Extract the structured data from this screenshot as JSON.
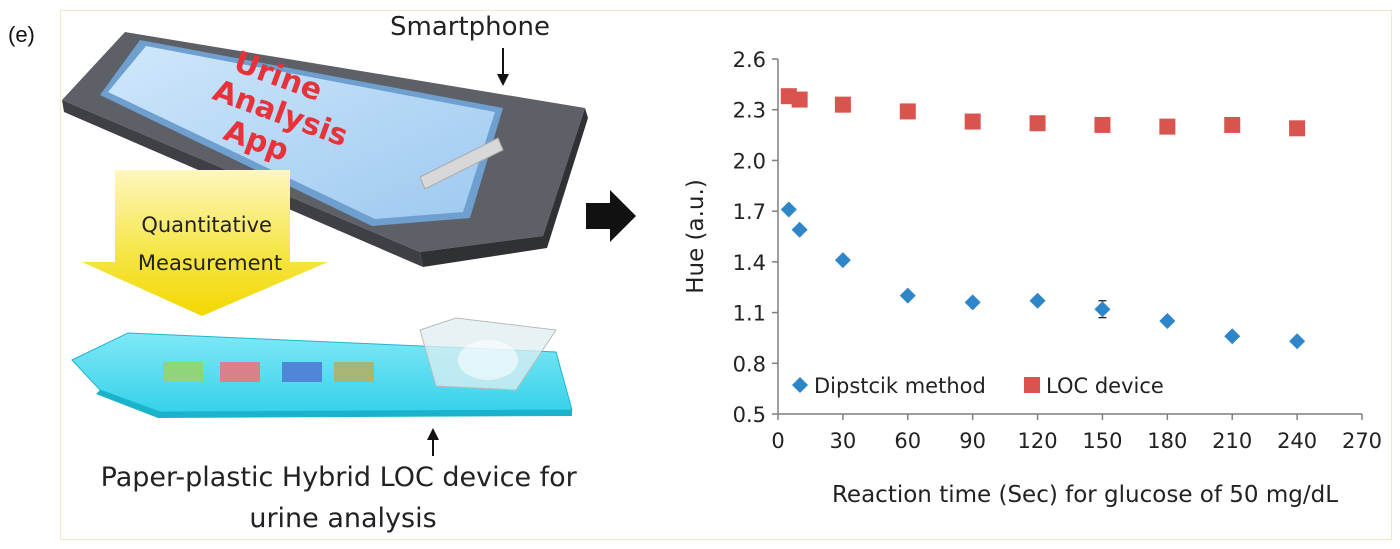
{
  "panel_label": "(e)",
  "illustration": {
    "phone_label": "Smartphone",
    "app_text_lines": [
      "Urine",
      "Analysis",
      "App"
    ],
    "arrow_text_lines": [
      "Quantitative",
      "Measurement"
    ],
    "device_caption_lines": [
      "Paper-plastic Hybrid LOC device for",
      "urine analysis"
    ],
    "strip_pad_colors": [
      "#8fd67a",
      "#d9808a",
      "#4f86d8",
      "#a7b577"
    ],
    "icons": [
      "smartphone-illustration",
      "down-arrow-icon",
      "loc-device-illustration",
      "right-arrow-icon"
    ]
  },
  "chart_data": {
    "type": "scatter",
    "xlabel": "Reaction time (Sec) for glucose of 50 mg/dL",
    "ylabel": "Hue (a.u.)",
    "xlim": [
      0,
      270
    ],
    "ylim": [
      0.5,
      2.6
    ],
    "x_ticks": [
      "0",
      "30",
      "60",
      "90",
      "120",
      "150",
      "180",
      "210",
      "240",
      "270"
    ],
    "y_ticks": [
      "2.6",
      "2.3",
      "2.0",
      "1.7",
      "1.4",
      "1.1",
      "0.8",
      "0.5"
    ],
    "legend_position": "bottom-left inside",
    "series": [
      {
        "name": "Dipstcik method",
        "marker": "diamond",
        "color": "#2e86c8",
        "x": [
          5,
          10,
          30,
          60,
          90,
          120,
          150,
          180,
          210,
          240
        ],
        "y": [
          1.71,
          1.59,
          1.41,
          1.2,
          1.16,
          1.17,
          1.12,
          1.05,
          0.96,
          0.93
        ],
        "error": [
          0,
          0,
          0,
          0,
          0,
          0,
          0.05,
          0,
          0,
          0
        ]
      },
      {
        "name": "LOC device",
        "marker": "square",
        "color": "#d9534f",
        "x": [
          5,
          10,
          30,
          60,
          90,
          120,
          150,
          180,
          210,
          240
        ],
        "y": [
          2.38,
          2.36,
          2.33,
          2.29,
          2.23,
          2.22,
          2.21,
          2.2,
          2.21,
          2.19
        ],
        "error": [
          0,
          0,
          0,
          0,
          0,
          0,
          0,
          0,
          0,
          0
        ]
      }
    ]
  }
}
